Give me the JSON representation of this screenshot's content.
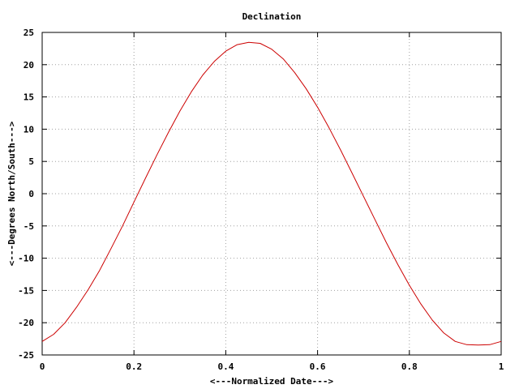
{
  "chart_data": {
    "type": "line",
    "title": "Declination",
    "xlabel": "<---Normalized Date--->",
    "ylabel": "<---Degrees North/South--->",
    "xlim": [
      0,
      1
    ],
    "ylim": [
      -25,
      25
    ],
    "xticks": [
      "0",
      "0.2",
      "0.4",
      "0.6",
      "0.8",
      "1"
    ],
    "yticks": [
      "25",
      "20",
      "15",
      "10",
      "5",
      "0",
      "-5",
      "-10",
      "-15",
      "-20",
      "-25"
    ],
    "grid": true,
    "legend": "none",
    "series": [
      {
        "color": "#cc0000",
        "x": [
          0,
          0.025,
          0.05,
          0.075,
          0.1,
          0.125,
          0.15,
          0.175,
          0.2,
          0.225,
          0.25,
          0.275,
          0.3,
          0.325,
          0.35,
          0.375,
          0.4,
          0.425,
          0.45,
          0.475,
          0.5,
          0.525,
          0.55,
          0.575,
          0.6,
          0.625,
          0.65,
          0.675,
          0.7,
          0.725,
          0.75,
          0.775,
          0.8,
          0.825,
          0.85,
          0.875,
          0.9,
          0.925,
          0.95,
          0.975,
          1
        ],
        "y": [
          -22.9,
          -21.8,
          -20.0,
          -17.6,
          -14.9,
          -11.9,
          -8.5,
          -5.0,
          -1.3,
          2.4,
          6.0,
          9.5,
          12.8,
          15.8,
          18.4,
          20.5,
          22.1,
          23.1,
          23.45,
          23.3,
          22.4,
          20.9,
          18.8,
          16.3,
          13.4,
          10.2,
          6.8,
          3.2,
          -0.4,
          -4.0,
          -7.6,
          -11.0,
          -14.2,
          -17.1,
          -19.6,
          -21.6,
          -22.9,
          -23.4,
          -23.45,
          -23.4,
          -22.9
        ]
      }
    ]
  }
}
